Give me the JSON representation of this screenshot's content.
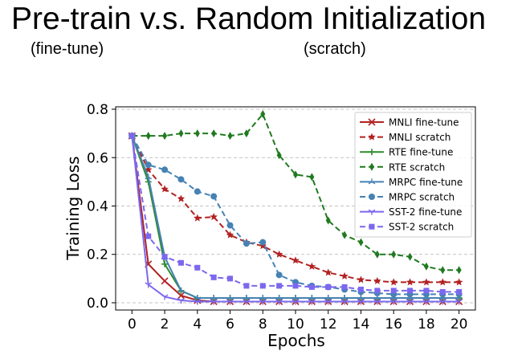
{
  "slide": {
    "title": "Pre-train v.s. Random Initialization",
    "left_caption": "(fine-tune)",
    "right_caption": "(scratch)"
  },
  "chart_data": {
    "type": "line",
    "title": "",
    "xlabel": "Epochs",
    "ylabel": "Training Loss",
    "xlim": [
      -1,
      21
    ],
    "ylim": [
      -0.03,
      0.81
    ],
    "xticks": [
      0,
      2,
      4,
      6,
      8,
      10,
      12,
      14,
      16,
      18,
      20
    ],
    "yticks": [
      0.0,
      0.2,
      0.4,
      0.6,
      0.8
    ],
    "ytick_labels": [
      "0.0",
      "0.2",
      "0.4",
      "0.6",
      "0.8"
    ],
    "grid": "horizontal dashed",
    "legend_position": "top-right",
    "x": [
      0,
      1,
      2,
      3,
      4,
      5,
      6,
      7,
      8,
      9,
      10,
      11,
      12,
      13,
      14,
      15,
      16,
      17,
      18,
      19,
      20
    ],
    "series": [
      {
        "name": "MNLI fine-tune",
        "color": "#b22222",
        "linestyle": "solid",
        "marker": "x",
        "values": [
          0.69,
          0.16,
          0.09,
          0.03,
          0.01,
          0.005,
          0.005,
          0.005,
          0.005,
          0.005,
          0.005,
          0.005,
          0.005,
          0.005,
          0.005,
          0.005,
          0.005,
          0.005,
          0.005,
          0.005,
          0.005
        ]
      },
      {
        "name": "MNLI scratch",
        "color": "#b22222",
        "linestyle": "dashed",
        "marker": "star",
        "values": [
          0.69,
          0.55,
          0.47,
          0.43,
          0.35,
          0.355,
          0.28,
          0.25,
          0.235,
          0.2,
          0.175,
          0.15,
          0.125,
          0.11,
          0.095,
          0.09,
          0.085,
          0.085,
          0.085,
          0.085,
          0.085
        ]
      },
      {
        "name": "RTE fine-tune",
        "color": "#2e8b2e",
        "linestyle": "solid",
        "marker": "plus",
        "values": [
          0.69,
          0.5,
          0.16,
          0.05,
          0.02,
          0.02,
          0.02,
          0.02,
          0.02,
          0.02,
          0.02,
          0.02,
          0.02,
          0.02,
          0.02,
          0.02,
          0.02,
          0.02,
          0.02,
          0.02,
          0.02
        ]
      },
      {
        "name": "RTE scratch",
        "color": "#1f7a1f",
        "linestyle": "dashed",
        "marker": "diamond",
        "values": [
          0.69,
          0.69,
          0.69,
          0.7,
          0.7,
          0.7,
          0.69,
          0.7,
          0.78,
          0.61,
          0.53,
          0.52,
          0.34,
          0.28,
          0.25,
          0.2,
          0.2,
          0.19,
          0.15,
          0.135,
          0.135
        ]
      },
      {
        "name": "MRPC fine-tune",
        "color": "#4682b4",
        "linestyle": "solid",
        "marker": "tri",
        "values": [
          0.69,
          0.52,
          0.19,
          0.05,
          0.02,
          0.02,
          0.02,
          0.02,
          0.02,
          0.02,
          0.02,
          0.02,
          0.02,
          0.02,
          0.02,
          0.02,
          0.02,
          0.02,
          0.02,
          0.02,
          0.02
        ]
      },
      {
        "name": "MRPC scratch",
        "color": "#4682b4",
        "linestyle": "dashed",
        "marker": "circle",
        "values": [
          0.69,
          0.57,
          0.55,
          0.51,
          0.46,
          0.44,
          0.32,
          0.245,
          0.25,
          0.115,
          0.085,
          0.07,
          0.065,
          0.055,
          0.045,
          0.04,
          0.035,
          0.035,
          0.035,
          0.035,
          0.035
        ]
      },
      {
        "name": "SST-2 fine-tune",
        "color": "#7b68ee",
        "linestyle": "solid",
        "marker": "tri_down",
        "values": [
          0.69,
          0.075,
          0.025,
          0.01,
          0.005,
          0.005,
          0.005,
          0.005,
          0.005,
          0.005,
          0.005,
          0.005,
          0.005,
          0.005,
          0.005,
          0.005,
          0.005,
          0.005,
          0.005,
          0.005,
          0.005
        ]
      },
      {
        "name": "SST-2 scratch",
        "color": "#7b68ee",
        "linestyle": "dashed",
        "marker": "square",
        "values": [
          0.69,
          0.275,
          0.19,
          0.165,
          0.145,
          0.105,
          0.1,
          0.07,
          0.07,
          0.07,
          0.07,
          0.065,
          0.065,
          0.065,
          0.055,
          0.05,
          0.05,
          0.05,
          0.05,
          0.045,
          0.045
        ]
      }
    ]
  }
}
